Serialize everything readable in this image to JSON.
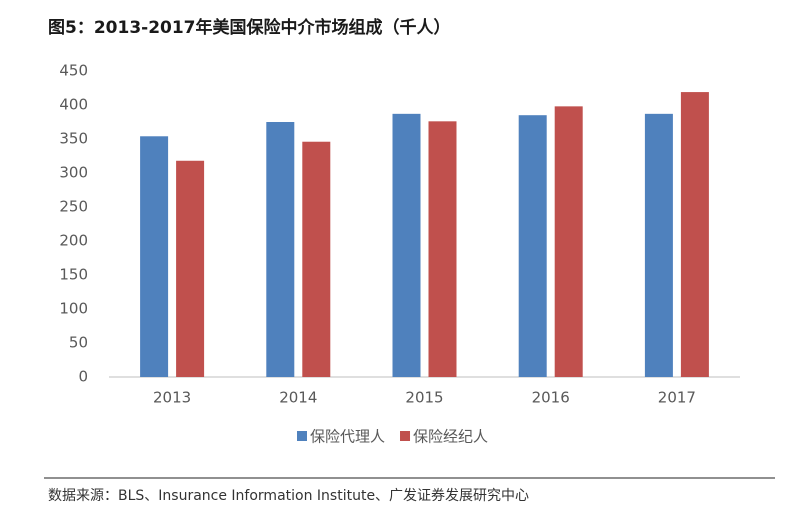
{
  "chart_data": {
    "type": "bar",
    "title": "图5：2013-2017年美国保险中介市场组成（千人）",
    "categories": [
      "2013",
      "2014",
      "2015",
      "2016",
      "2017"
    ],
    "series": [
      {
        "name": "保险代理人",
        "color": "#4f81bd",
        "values": [
          354,
          375,
          387,
          385,
          387
        ]
      },
      {
        "name": "保险经纪人",
        "color": "#c0504d",
        "values": [
          318,
          346,
          376,
          398,
          419
        ]
      }
    ],
    "ylim": [
      0,
      450
    ],
    "yticks": [
      0,
      50,
      100,
      150,
      200,
      250,
      300,
      350,
      400,
      450
    ],
    "grid": false,
    "legend": "bottom",
    "source": "数据来源：BLS、Insurance Information Institute、广发证券发展研究中心"
  }
}
